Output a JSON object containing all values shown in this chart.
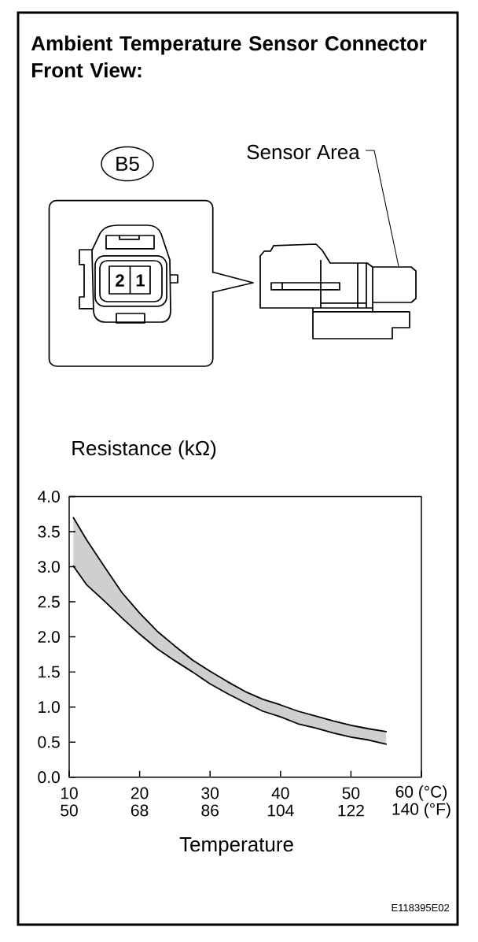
{
  "chart_data": {
    "type": "line",
    "title": "Ambient Temperature Sensor Connector Front View:",
    "ylabel": "Resistance (kΩ)",
    "xlabel": "Temperature",
    "annotations": [
      "B5",
      "2",
      "1",
      "Sensor Area",
      "E118395E02"
    ],
    "x": [
      10.6,
      12.5,
      15,
      17.5,
      20,
      22.5,
      25,
      27.5,
      30,
      32.5,
      35,
      37.5,
      40,
      42.5,
      45,
      47.5,
      50,
      52.5,
      55
    ],
    "series": [
      {
        "color": "#000000",
        "values": [
          3.7,
          3.38,
          3.0,
          2.63,
          2.34,
          2.08,
          1.87,
          1.67,
          1.51,
          1.36,
          1.22,
          1.11,
          1.03,
          0.94,
          0.87,
          0.8,
          0.74,
          0.69,
          0.65
        ],
        "lower": [
          3.01,
          2.74,
          2.51,
          2.27,
          2.04,
          1.83,
          1.66,
          1.5,
          1.33,
          1.19,
          1.06,
          0.94,
          0.86,
          0.76,
          0.7,
          0.63,
          0.57,
          0.53,
          0.47
        ],
        "upper": [
          3.7,
          3.38,
          3.0,
          2.63,
          2.34,
          2.08,
          1.87,
          1.67,
          1.51,
          1.36,
          1.22,
          1.11,
          1.03,
          0.94,
          0.87,
          0.8,
          0.74,
          0.69,
          0.65
        ]
      },
      {
        "color": "#000000",
        "values": [
          3.01,
          2.74,
          2.51,
          2.27,
          2.04,
          1.83,
          1.66,
          1.5,
          1.33,
          1.19,
          1.06,
          0.94,
          0.86,
          0.76,
          0.7,
          0.63,
          0.57,
          0.53,
          0.47
        ]
      }
    ],
    "xlim": [
      10,
      60
    ],
    "xticks": [
      10,
      20,
      30,
      40,
      50,
      {
        "value": 60,
        "label": "60 (°C)"
      }
    ],
    "x2lim": [
      50,
      140
    ],
    "x2ticks": [
      50,
      68,
      86,
      104,
      122,
      {
        "value": 140,
        "label": "140 (°F)"
      }
    ],
    "ylim": [
      0,
      4
    ],
    "yticks": [
      {
        "value": 0,
        "label": "0.0"
      },
      0.5,
      {
        "value": 1,
        "label": "1.0"
      },
      1.5,
      {
        "value": 2,
        "label": "2.0"
      },
      2.5,
      {
        "value": 3,
        "label": "3.0"
      },
      3.5,
      {
        "value": 4,
        "label": "4.0"
      }
    ]
  }
}
